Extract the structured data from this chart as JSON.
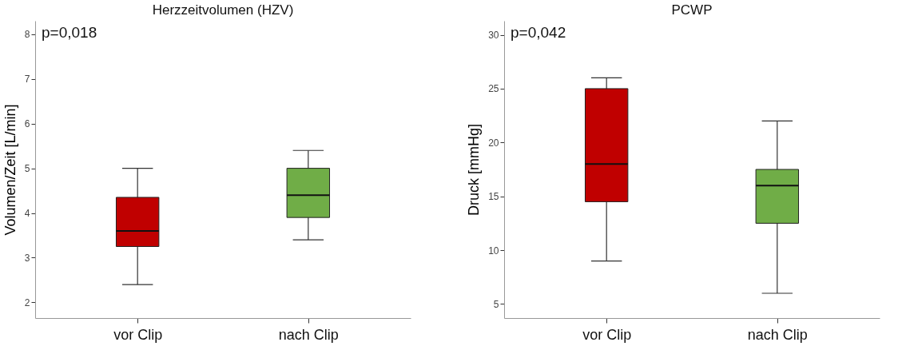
{
  "chart_data": [
    {
      "type": "box",
      "title": "Herzzeitvolumen (HZV)",
      "ylabel": "Volumen/Zeit [L/min]",
      "categories": [
        "vor Clip",
        "nach Clip"
      ],
      "colors": [
        "#c00000",
        "#70ad47"
      ],
      "boxes": [
        {
          "low": 2.4,
          "q1": 3.25,
          "median": 3.6,
          "q3": 4.35,
          "high": 5.0
        },
        {
          "low": 3.4,
          "q1": 3.9,
          "median": 4.4,
          "q3": 5.0,
          "high": 5.4
        }
      ],
      "ylim": [
        1.65,
        8.3
      ],
      "yticks": [
        2,
        3,
        4,
        5,
        6,
        7,
        8
      ],
      "grid": false,
      "annotations": [
        "p=0,018"
      ]
    },
    {
      "type": "box",
      "title": "PCWP",
      "ylabel": "Druck [mmHg]",
      "categories": [
        "vor Clip",
        "nach Clip"
      ],
      "colors": [
        "#c00000",
        "#70ad47"
      ],
      "boxes": [
        {
          "low": 9,
          "q1": 14.5,
          "median": 18,
          "q3": 25,
          "high": 26
        },
        {
          "low": 6,
          "q1": 12.5,
          "median": 16,
          "q3": 17.5,
          "high": 22
        }
      ],
      "ylim": [
        3.7,
        31.3
      ],
      "yticks": [
        5,
        10,
        15,
        20,
        25,
        30
      ],
      "grid": false,
      "annotations": [
        "p=0,042"
      ]
    }
  ]
}
